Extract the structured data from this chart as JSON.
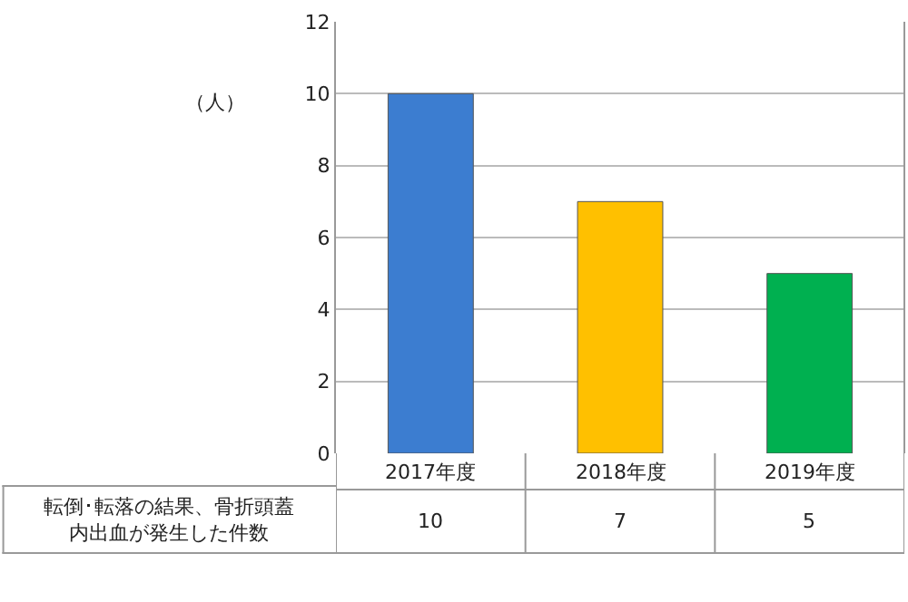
{
  "chart_data": {
    "type": "bar",
    "ylabel": "（人）",
    "categories": [
      "2017年度",
      "2018年度",
      "2019年度"
    ],
    "series": [
      {
        "name": "転倒･転落の結果、骨折頭蓋内出血が発生した件数",
        "values": [
          10,
          7,
          5
        ],
        "colors": [
          "#3c7dd0",
          "#ffc000",
          "#00b050"
        ]
      }
    ],
    "ylim": [
      0,
      12
    ],
    "yticks": [
      0,
      2,
      4,
      6,
      8,
      10,
      12
    ],
    "grid": "y",
    "data_labels": true,
    "legend": false
  }
}
